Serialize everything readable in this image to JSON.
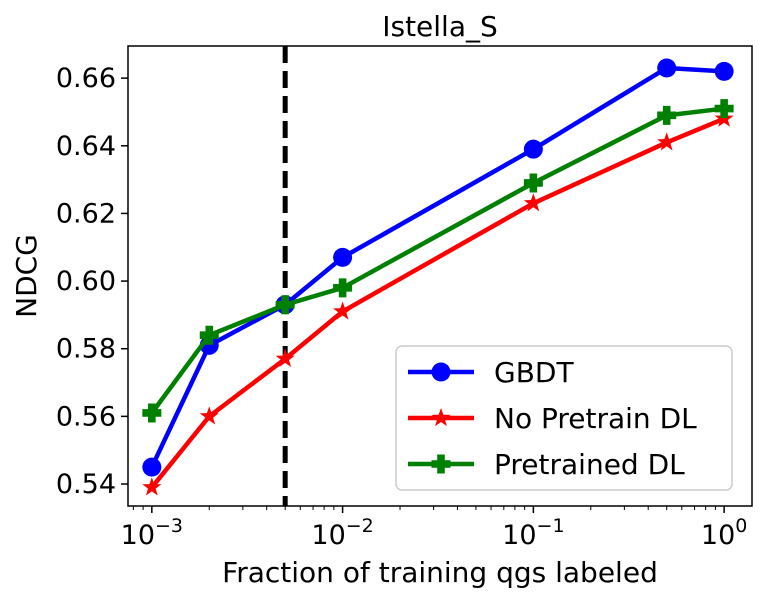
{
  "chart_data": {
    "type": "line",
    "title": "Istella_S",
    "xlabel": "Fraction of training qgs labeled",
    "ylabel": "NDCG",
    "xscale": "log",
    "xlim": [
      0.00075,
      1.4
    ],
    "ylim": [
      0.5335,
      0.6695
    ],
    "x_ticks": [
      {
        "value": 0.001,
        "base": "10",
        "exp": "−3"
      },
      {
        "value": 0.01,
        "base": "10",
        "exp": "−2"
      },
      {
        "value": 0.1,
        "base": "10",
        "exp": "−1"
      },
      {
        "value": 1,
        "base": "10",
        "exp": "0"
      }
    ],
    "y_ticks": [
      0.54,
      0.56,
      0.58,
      0.6,
      0.62,
      0.64,
      0.66
    ],
    "y_tick_labels": [
      "0.54",
      "0.56",
      "0.58",
      "0.60",
      "0.62",
      "0.64",
      "0.66"
    ],
    "vline": {
      "x": 0.005,
      "style": "dashed",
      "color": "#000000"
    },
    "legend_position": "lower-right",
    "x": [
      0.001,
      0.002,
      0.005,
      0.01,
      0.1,
      0.5,
      1.0
    ],
    "series": [
      {
        "name": "GBDT",
        "color": "#0000ff",
        "marker": "circle",
        "values": [
          0.545,
          0.581,
          0.593,
          0.607,
          0.639,
          0.663,
          0.662
        ]
      },
      {
        "name": "No Pretrain DL",
        "color": "#ff0000",
        "marker": "star",
        "values": [
          0.539,
          0.56,
          0.577,
          0.591,
          0.623,
          0.641,
          0.648
        ]
      },
      {
        "name": "Pretrained DL",
        "color": "#008000",
        "marker": "plus",
        "values": [
          0.561,
          0.584,
          0.593,
          0.598,
          0.629,
          0.649,
          0.651
        ]
      }
    ]
  }
}
